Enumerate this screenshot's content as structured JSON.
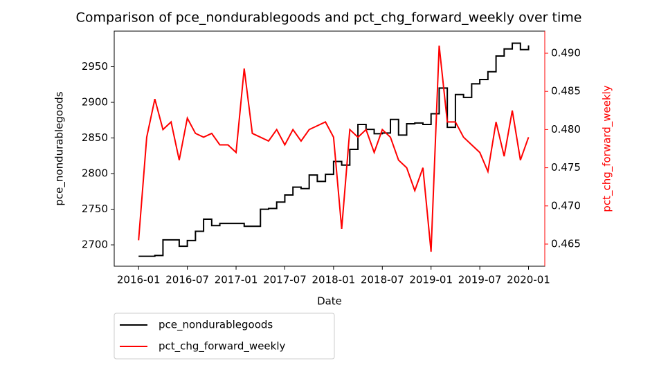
{
  "chart_data": {
    "type": "line",
    "title": "Comparison of pce_nondurablegoods and pct_chg_forward_weekly over time",
    "x_label": "Date",
    "y_label": "pce_nondurablegoods",
    "y2_label": "pct_chg_forward_weekly",
    "y2_label_color": "#ff0000",
    "x": [
      "2016-01",
      "2016-02",
      "2016-03",
      "2016-04",
      "2016-05",
      "2016-06",
      "2016-07",
      "2016-08",
      "2016-09",
      "2016-10",
      "2016-11",
      "2016-12",
      "2017-01",
      "2017-02",
      "2017-03",
      "2017-04",
      "2017-05",
      "2017-06",
      "2017-07",
      "2017-08",
      "2017-09",
      "2017-10",
      "2017-11",
      "2017-12",
      "2018-01",
      "2018-02",
      "2018-03",
      "2018-04",
      "2018-05",
      "2018-06",
      "2018-07",
      "2018-08",
      "2018-09",
      "2018-10",
      "2018-11",
      "2018-12",
      "2019-01",
      "2019-02",
      "2019-03",
      "2019-04",
      "2019-05",
      "2019-06",
      "2019-07",
      "2019-08",
      "2019-09",
      "2019-10",
      "2019-11",
      "2019-12",
      "2020-01"
    ],
    "series": [
      {
        "name": "pce_nondurablegoods",
        "color": "#000000",
        "step": true,
        "values": [
          2684,
          2684,
          2685,
          2707,
          2707,
          2698,
          2706,
          2719,
          2736,
          2727,
          2730,
          2730,
          2730,
          2726,
          2726,
          2750,
          2751,
          2760,
          2770,
          2781,
          2779,
          2798,
          2789,
          2799,
          2817,
          2812,
          2834,
          2869,
          2862,
          2856,
          2857,
          2876,
          2854,
          2870,
          2871,
          2869,
          2884,
          2920,
          2865,
          2911,
          2907,
          2926,
          2932,
          2943,
          2965,
          2975,
          2983,
          2974,
          2980
        ]
      },
      {
        "name": "pct_chg_forward_weekly",
        "color": "#ff0000",
        "axis": "y2",
        "values": [
          0.4655,
          0.479,
          0.484,
          0.48,
          0.481,
          0.476,
          0.4815,
          0.4795,
          0.479,
          0.4795,
          0.478,
          0.478,
          0.477,
          0.488,
          0.4795,
          0.479,
          0.4785,
          0.48,
          0.478,
          0.48,
          0.4785,
          0.48,
          0.4805,
          0.481,
          0.479,
          0.467,
          0.48,
          0.479,
          0.48,
          0.477,
          0.48,
          0.479,
          0.476,
          0.475,
          0.472,
          0.475,
          0.464,
          0.491,
          0.481,
          0.481,
          0.479,
          0.478,
          0.477,
          0.4745,
          0.481,
          0.4765,
          0.4825,
          0.476,
          0.479
        ]
      }
    ],
    "xlim": [
      "2015-10",
      "2020-03"
    ],
    "xticks": [
      "2016-01",
      "2016-07",
      "2017-01",
      "2017-07",
      "2018-01",
      "2018-07",
      "2019-01",
      "2019-07",
      "2020-01"
    ],
    "ylim": [
      2670,
      3000
    ],
    "yticks": [
      2700,
      2750,
      2800,
      2850,
      2900,
      2950
    ],
    "y2lim": [
      0.4621,
      0.4929
    ],
    "y2ticks": [
      0.465,
      {
        "value": 0.47,
        "label": "0.470"
      },
      0.475,
      {
        "value": 0.48,
        "label": "0.480"
      },
      0.485,
      {
        "value": 0.49,
        "label": "0.490"
      }
    ],
    "legend": "below-left"
  }
}
